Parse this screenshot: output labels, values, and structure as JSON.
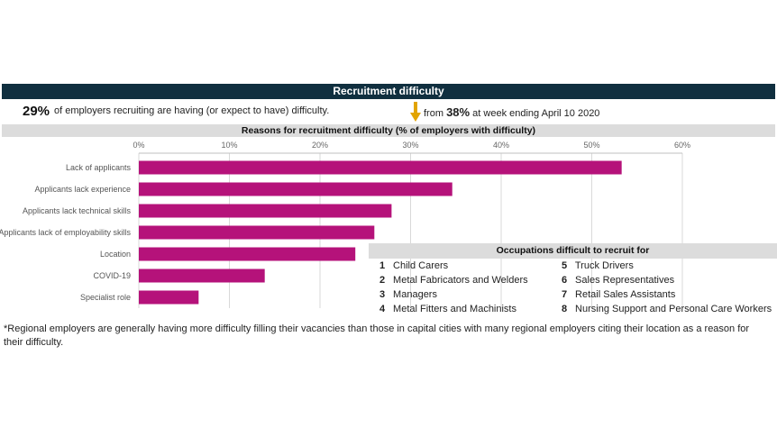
{
  "banner_title": "Recruitment difficulty",
  "stat": {
    "value": "29%",
    "description": "of employers recruiting are having (or expect to have) difficulty.",
    "from_prefix": "from",
    "from_value": "38%",
    "from_suffix": "at week ending April 10 2020",
    "arrow_color": "#e2a400"
  },
  "chart_data": {
    "type": "bar",
    "orientation": "horizontal",
    "title": "Reasons for recruitment difficulty (% of employers with difficulty)",
    "categories": [
      "Lack of applicants",
      "Applicants lack experience",
      "Applicants lack technical skills",
      "Applicants lack of employability skills",
      "Location",
      "COVID-19",
      "Specialist role"
    ],
    "values": [
      53.3,
      34.6,
      27.9,
      26.0,
      23.9,
      13.9,
      6.6
    ],
    "xlim": [
      0,
      60
    ],
    "xticks": [
      "0%",
      "10%",
      "20%",
      "30%",
      "40%",
      "50%",
      "60%"
    ],
    "grid": true,
    "bar_color": "#b5127a"
  },
  "occupations": {
    "title": "Occupations difficult to recruit for",
    "items": [
      {
        "num": "1",
        "label": "Child Carers"
      },
      {
        "num": "2",
        "label": "Metal Fabricators and Welders"
      },
      {
        "num": "3",
        "label": "Managers"
      },
      {
        "num": "4",
        "label": "Metal Fitters and Machinists"
      },
      {
        "num": "5",
        "label": "Truck Drivers"
      },
      {
        "num": "6",
        "label": "Sales Representatives"
      },
      {
        "num": "7",
        "label": "Retail Sales Assistants"
      },
      {
        "num": "8",
        "label": "Nursing Support and Personal Care Workers"
      }
    ]
  },
  "footnote": "*Regional employers are generally having more difficulty filling their vacancies than those in capital cities with many regional employers citing their location as a reason for their difficulty."
}
